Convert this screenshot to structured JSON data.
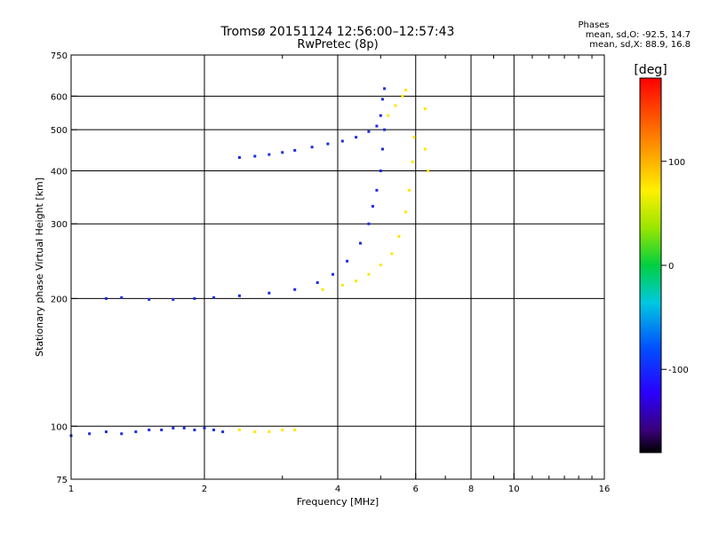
{
  "title": "Tromsø 20151124 12:56:00–12:57:43",
  "subtitle": "RwPretec (8p)",
  "phase_box": {
    "heading": "Phases",
    "line_o": "mean, sd,O: -92.5, 14.7",
    "line_x": "mean, sd,X: 88.9, 16.8"
  },
  "chart_data": {
    "type": "scatter",
    "xlabel": "Frequency [MHz]",
    "ylabel": "Stationary phase Virtual Height [km]",
    "x_scale": "log",
    "y_scale": "log",
    "xlim": [
      1,
      16
    ],
    "ylim": [
      75,
      750
    ],
    "x_ticks": [
      1,
      2,
      4,
      6,
      8,
      10,
      16
    ],
    "x_tick_labels": [
      "1",
      "2",
      "4",
      "6",
      "8",
      "10",
      "16"
    ],
    "x_minor_ticks": [
      3,
      5,
      7,
      9,
      11,
      12,
      13,
      14,
      15
    ],
    "y_ticks": [
      75,
      100,
      200,
      300,
      400,
      500,
      600,
      750
    ],
    "y_tick_labels": [
      "75",
      "100",
      "200",
      "300",
      "400",
      "500",
      "600",
      "750"
    ],
    "grid": true,
    "colorbar": {
      "label": "[deg]",
      "range": [
        -180,
        180
      ],
      "ticks": [
        100,
        0,
        -100
      ],
      "tick_labels": [
        "100",
        "0",
        "-100"
      ]
    },
    "series": [
      {
        "color": "#1a2ee0",
        "phase": -92.5,
        "points": [
          [
            1.0,
            95
          ],
          [
            1.1,
            96
          ],
          [
            1.2,
            97
          ],
          [
            1.3,
            96
          ],
          [
            1.4,
            97
          ],
          [
            1.5,
            98
          ],
          [
            1.6,
            98
          ],
          [
            1.7,
            99
          ],
          [
            1.8,
            99
          ],
          [
            1.9,
            98
          ],
          [
            2.0,
            99
          ],
          [
            2.1,
            98
          ],
          [
            2.2,
            97
          ],
          [
            1.2,
            200
          ],
          [
            1.3,
            201
          ],
          [
            1.5,
            199
          ],
          [
            1.7,
            199
          ],
          [
            1.9,
            200
          ],
          [
            2.1,
            201
          ],
          [
            2.4,
            203
          ],
          [
            2.8,
            206
          ],
          [
            3.2,
            210
          ],
          [
            3.6,
            218
          ],
          [
            3.9,
            228
          ],
          [
            4.2,
            245
          ],
          [
            4.5,
            270
          ],
          [
            4.7,
            300
          ],
          [
            4.8,
            330
          ],
          [
            4.9,
            360
          ],
          [
            5.0,
            400
          ],
          [
            5.05,
            450
          ],
          [
            5.1,
            500
          ],
          [
            2.4,
            430
          ],
          [
            2.6,
            433
          ],
          [
            2.8,
            437
          ],
          [
            3.0,
            442
          ],
          [
            3.2,
            447
          ],
          [
            3.5,
            455
          ],
          [
            3.8,
            463
          ],
          [
            4.1,
            470
          ],
          [
            4.4,
            480
          ],
          [
            4.7,
            495
          ],
          [
            4.9,
            510
          ],
          [
            5.0,
            540
          ],
          [
            5.05,
            590
          ],
          [
            5.1,
            625
          ]
        ]
      },
      {
        "color": "#ffe600",
        "phase": 88.9,
        "points": [
          [
            2.4,
            98
          ],
          [
            2.6,
            97
          ],
          [
            2.8,
            97
          ],
          [
            3.0,
            98
          ],
          [
            3.2,
            98
          ],
          [
            3.7,
            210
          ],
          [
            4.1,
            215
          ],
          [
            4.4,
            220
          ],
          [
            4.7,
            228
          ],
          [
            5.0,
            240
          ],
          [
            5.3,
            255
          ],
          [
            5.5,
            280
          ],
          [
            5.7,
            320
          ],
          [
            5.8,
            360
          ],
          [
            5.9,
            420
          ],
          [
            5.95,
            480
          ],
          [
            5.2,
            540
          ],
          [
            5.4,
            570
          ],
          [
            5.6,
            600
          ],
          [
            5.7,
            620
          ],
          [
            6.3,
            560
          ],
          [
            6.4,
            400
          ],
          [
            6.3,
            450
          ]
        ]
      }
    ]
  }
}
